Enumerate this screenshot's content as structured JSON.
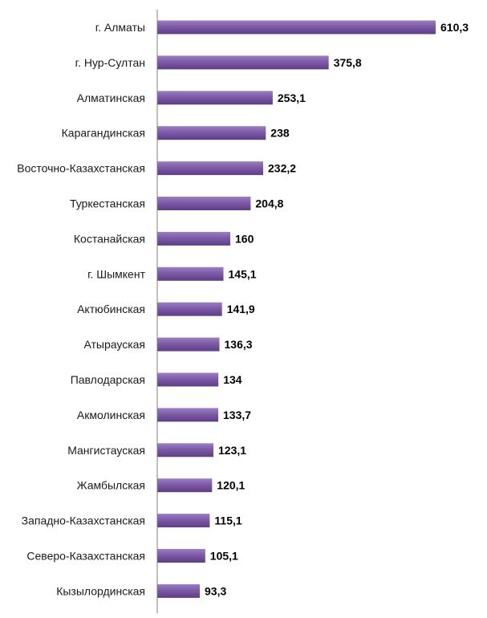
{
  "chart_data": {
    "type": "bar",
    "orientation": "horizontal",
    "categories": [
      "г. Алматы",
      "г. Нур-Султан",
      "Алматинская",
      "Карагандинская",
      "Восточно-Казахстанская",
      "Туркестанская",
      "Костанайская",
      "г. Шымкент",
      "Актюбинская",
      "Атырауская",
      "Павлодарская",
      "Акмолинская",
      "Мангистауская",
      "Жамбылская",
      "Западно-Казахстанская",
      "Северо-Казахстанская",
      "Кызылординская"
    ],
    "values": [
      610.3,
      375.8,
      253.1,
      238,
      232.2,
      204.8,
      160,
      145.1,
      141.9,
      136.3,
      134,
      133.7,
      123.1,
      120.1,
      115.1,
      105.1,
      93.3
    ],
    "value_labels": [
      "610,3",
      "375,8",
      "253,1",
      "238",
      "232,2",
      "204,8",
      "160",
      "145,1",
      "141,9",
      "136,3",
      "134",
      "133,7",
      "123,1",
      "120,1",
      "115,1",
      "105,1",
      "93,3"
    ],
    "title": "",
    "xlabel": "",
    "ylabel": "",
    "xlim": [
      0,
      610.3
    ],
    "grid": false,
    "legend": "none",
    "colors": {
      "bar_top": "#9b7fc4",
      "bar_mid": "#7d5aa6",
      "bar_bottom": "#5e3d86",
      "axis": "#7f7f7f"
    }
  }
}
